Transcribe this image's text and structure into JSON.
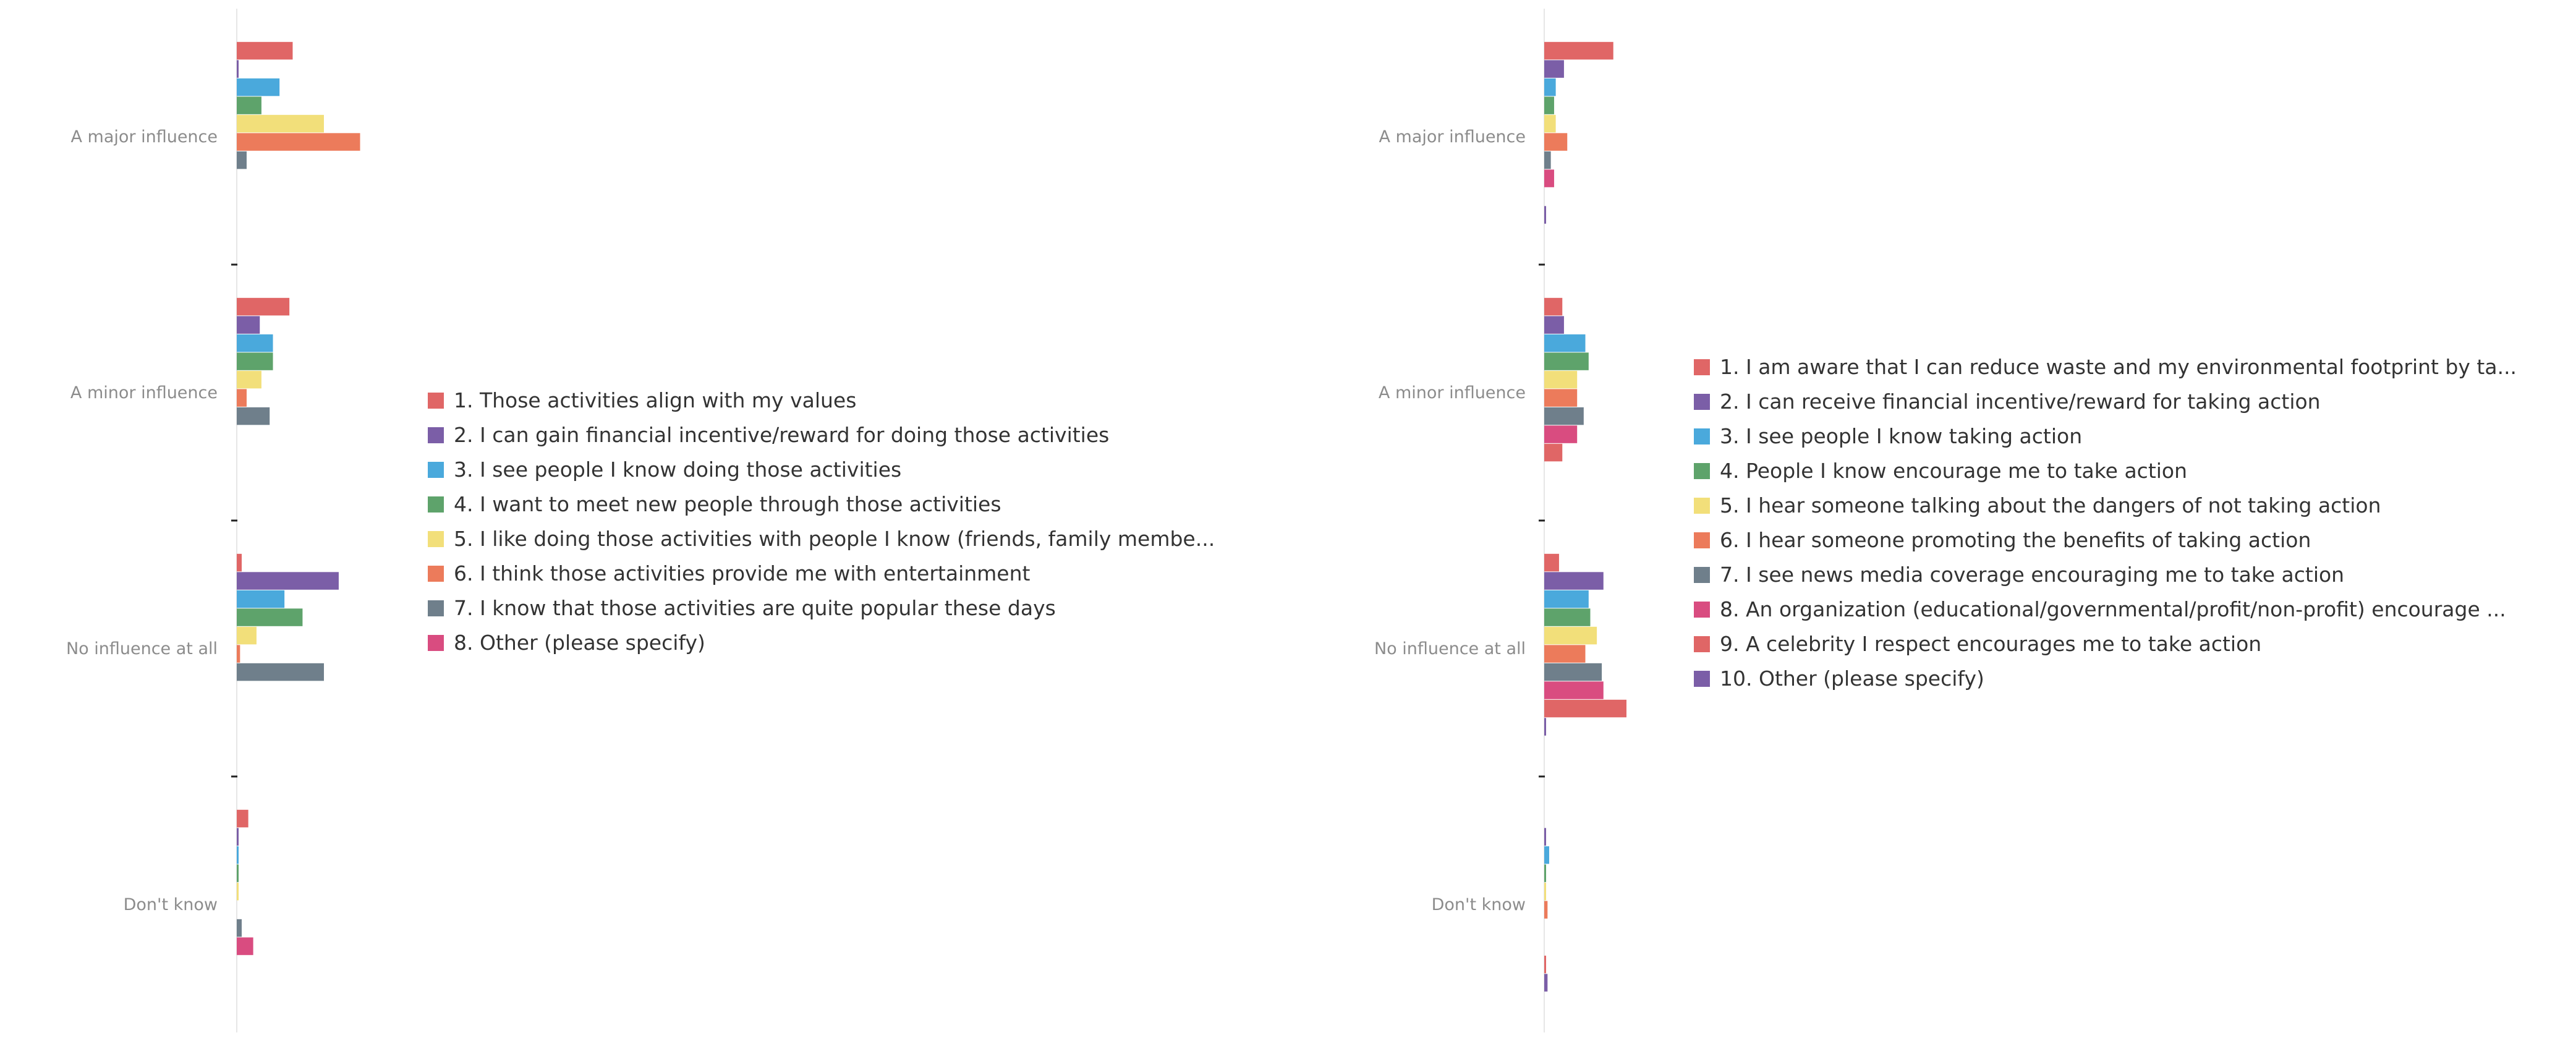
{
  "charts": [
    {
      "chart_data": {
        "type": "bar",
        "orientation": "horizontal",
        "grouped": true,
        "categories": [
          "A major influence",
          "A minor influence",
          "No influence at all",
          "Don't know"
        ],
        "xlim": [
          0,
          400
        ],
        "x_axis_visible": false,
        "grid": false,
        "legend_placement": "right",
        "series": [
          {
            "name": "1. Those activities align with my values",
            "color": "#e06666",
            "values": [
              34,
              32,
              3,
              7
            ]
          },
          {
            "name": "2. I can gain financial incentive/reward for doing those activities",
            "color": "#7b5ea7",
            "values": [
              1,
              14,
              62,
              1
            ]
          },
          {
            "name": "3. I see people I know doing those activities",
            "color": "#4aa9dc",
            "values": [
              26,
              22,
              29,
              1
            ]
          },
          {
            "name": "4. I want to meet new people through those activities",
            "color": "#5ea36b",
            "values": [
              15,
              22,
              40,
              1
            ]
          },
          {
            "name": "5. I like doing those activities with people I know (friends, family membe...",
            "color": "#f2df7a",
            "values": [
              53,
              15,
              12,
              1
            ]
          },
          {
            "name": "6. I think those activities provide me with entertainment",
            "color": "#ec7b5b",
            "values": [
              75,
              6,
              2,
              0
            ]
          },
          {
            "name": "7. I know that those activities are quite popular these days",
            "color": "#6f7f8b",
            "values": [
              6,
              20,
              53,
              3
            ]
          },
          {
            "name": "8. Other (please specify)",
            "color": "#d94c80",
            "values": [
              0,
              0,
              0,
              10
            ]
          }
        ]
      }
    },
    {
      "chart_data": {
        "type": "bar",
        "orientation": "horizontal",
        "grouped": true,
        "categories": [
          "A major influence",
          "A minor influence",
          "No influence at all",
          "Don't know"
        ],
        "xlim": [
          0,
          400
        ],
        "x_axis_visible": false,
        "grid": false,
        "legend_placement": "right",
        "series": [
          {
            "name": "1. I am aware that I can reduce waste and my environmental footprint by ta...",
            "color": "#e06666",
            "values": [
              42,
              11,
              9,
              0
            ]
          },
          {
            "name": "2. I can receive financial incentive/reward for taking action",
            "color": "#7b5ea7",
            "values": [
              12,
              12,
              36,
              1
            ]
          },
          {
            "name": "3. I see people I know taking action",
            "color": "#4aa9dc",
            "values": [
              7,
              25,
              27,
              3
            ]
          },
          {
            "name": "4. People I know encourage me to take action",
            "color": "#5ea36b",
            "values": [
              6,
              27,
              28,
              1
            ]
          },
          {
            "name": "5. I hear someone talking about the dangers of not taking action",
            "color": "#f2df7a",
            "values": [
              7,
              20,
              32,
              1
            ]
          },
          {
            "name": "6. I hear someone promoting the benefits of taking action",
            "color": "#ec7b5b",
            "values": [
              14,
              20,
              25,
              2
            ]
          },
          {
            "name": "7. I see news media coverage encouraging me to take action",
            "color": "#6f7f8b",
            "values": [
              4,
              24,
              35,
              0
            ]
          },
          {
            "name": "8. An organization (educational/governmental/profit/non-profit) encourage ...",
            "color": "#d94c80",
            "values": [
              6,
              20,
              36,
              0
            ]
          },
          {
            "name": "9. A celebrity I respect encourages me to take action",
            "color": "#e06666",
            "values": [
              0,
              11,
              50,
              1
            ]
          },
          {
            "name": "10. Other (please specify)",
            "color": "#7b5ea7",
            "values": [
              1,
              0,
              1,
              2
            ]
          }
        ]
      }
    }
  ]
}
